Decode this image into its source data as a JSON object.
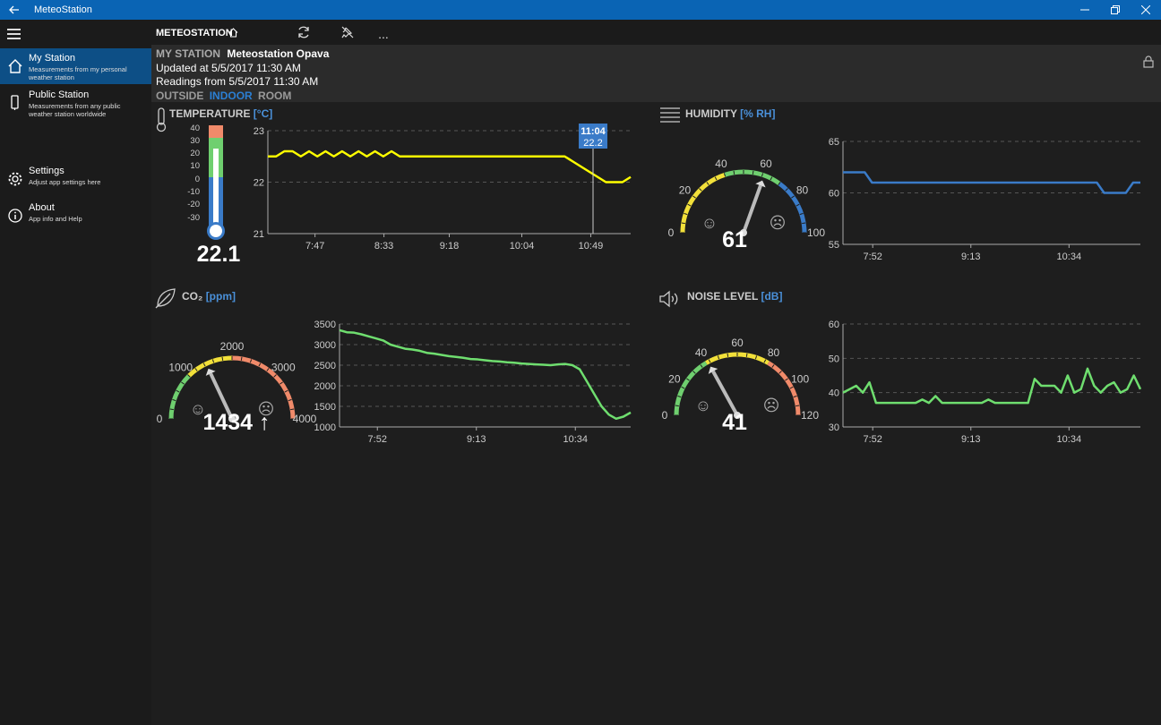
{
  "window": {
    "title": "MeteoStation"
  },
  "nav": {
    "items": [
      {
        "label": "My Station",
        "sub": "Measurements from my personal weather station"
      },
      {
        "label": "Public Station",
        "sub": "Measurements from any public weather station worldwide"
      },
      {
        "label": "Settings",
        "sub": "Adjust app settings here"
      },
      {
        "label": "About",
        "sub": "App info and Help"
      }
    ]
  },
  "cmdbar": {
    "title": "METEOSTATION",
    "more": "..."
  },
  "header": {
    "label": "MY STATION",
    "station_name": "Meteostation Opava",
    "updated": "Updated at 5/5/2017 11:30 AM",
    "readings": "Readings from 5/5/2017 11:30 AM",
    "tabs": [
      "OUTSIDE",
      "INDOOR",
      "ROOM"
    ],
    "selected_tab": "INDOOR"
  },
  "temperature": {
    "title": "TEMPERATURE",
    "unit": "[°C]",
    "value": "22.1",
    "gauge_ticks": [
      "40",
      "30",
      "20",
      "10",
      "0",
      "-10",
      "-20",
      "-30"
    ],
    "tooltip_time": "11:04",
    "tooltip_value": "22.2"
  },
  "humidity": {
    "title": "HUMIDITY",
    "unit": "[% RH]",
    "value": "61",
    "gauge_ticks": [
      "0",
      "20",
      "40",
      "60",
      "80",
      "100"
    ]
  },
  "co2": {
    "title": "CO₂",
    "unit": "[ppm]",
    "value": "1434 ↑",
    "gauge_ticks": [
      "0",
      "1000",
      "2000",
      "3000",
      "4000"
    ]
  },
  "noise": {
    "title": "NOISE LEVEL",
    "unit": "[dB]",
    "value": "41",
    "gauge_ticks": [
      "0",
      "20",
      "40",
      "60",
      "80",
      "100",
      "120"
    ]
  },
  "colors": {
    "accent": "#0a64b4",
    "temp_line": "#ffff00",
    "humidity_line": "#3a7bc8",
    "co2_line": "#6fde6f",
    "noise_line": "#6fde6f"
  },
  "chart_data": [
    {
      "type": "line",
      "xlabel": "",
      "ylabel": "",
      "x_ticks": [
        "7:47",
        "8:33",
        "9:18",
        "10:04",
        "10:49"
      ],
      "y_ticks": [
        "23",
        "22",
        "21"
      ],
      "ylim": [
        21,
        23
      ],
      "series": [
        {
          "values": [
            22.5,
            22.5,
            22.6,
            22.6,
            22.5,
            22.6,
            22.5,
            22.6,
            22.5,
            22.6,
            22.5,
            22.6,
            22.5,
            22.6,
            22.5,
            22.6,
            22.5,
            22.5,
            22.5,
            22.5,
            22.5,
            22.5,
            22.5,
            22.5,
            22.5,
            22.5,
            22.5,
            22.5,
            22.5,
            22.5,
            22.5,
            22.5,
            22.5,
            22.5,
            22.5,
            22.5,
            22.5,
            22.4,
            22.3,
            22.2,
            22.1,
            22.0,
            22.0,
            22.0,
            22.1
          ]
        }
      ]
    },
    {
      "type": "line",
      "xlabel": "",
      "ylabel": "",
      "x_ticks": [
        "7:52",
        "9:13",
        "10:34"
      ],
      "y_ticks": [
        "65",
        "60",
        "55"
      ],
      "ylim": [
        55,
        65
      ],
      "series": [
        {
          "values": [
            62,
            62,
            62,
            62,
            61,
            61,
            61,
            61,
            61,
            61,
            61,
            61,
            61,
            61,
            61,
            61,
            61,
            61,
            61,
            61,
            61,
            61,
            61,
            61,
            61,
            61,
            61,
            61,
            61,
            61,
            61,
            61,
            61,
            61,
            61,
            61,
            60,
            60,
            60,
            60,
            61,
            61
          ]
        }
      ]
    },
    {
      "type": "line",
      "xlabel": "",
      "ylabel": "",
      "x_ticks": [
        "7:52",
        "9:13",
        "10:34"
      ],
      "y_ticks": [
        "3500",
        "3000",
        "2500",
        "2000",
        "1500",
        "1000"
      ],
      "ylim": [
        1000,
        3500
      ],
      "series": [
        {
          "values": [
            3350,
            3300,
            3290,
            3250,
            3200,
            3150,
            3100,
            3000,
            2950,
            2900,
            2880,
            2850,
            2800,
            2780,
            2750,
            2720,
            2700,
            2680,
            2650,
            2640,
            2620,
            2600,
            2590,
            2570,
            2560,
            2540,
            2530,
            2520,
            2510,
            2500,
            2520,
            2530,
            2500,
            2400,
            2100,
            1800,
            1500,
            1300,
            1200,
            1250,
            1350
          ]
        }
      ]
    },
    {
      "type": "line",
      "xlabel": "",
      "ylabel": "",
      "x_ticks": [
        "7:52",
        "9:13",
        "10:34"
      ],
      "y_ticks": [
        "60",
        "50",
        "40",
        "30"
      ],
      "ylim": [
        30,
        60
      ],
      "series": [
        {
          "values": [
            40,
            41,
            42,
            40,
            43,
            37,
            37,
            37,
            37,
            37,
            37,
            37,
            38,
            37,
            39,
            37,
            37,
            37,
            37,
            37,
            37,
            37,
            38,
            37,
            37,
            37,
            37,
            37,
            37,
            44,
            42,
            42,
            42,
            40,
            45,
            40,
            41,
            47,
            42,
            40,
            42,
            43,
            40,
            41,
            45,
            41
          ]
        }
      ]
    }
  ]
}
